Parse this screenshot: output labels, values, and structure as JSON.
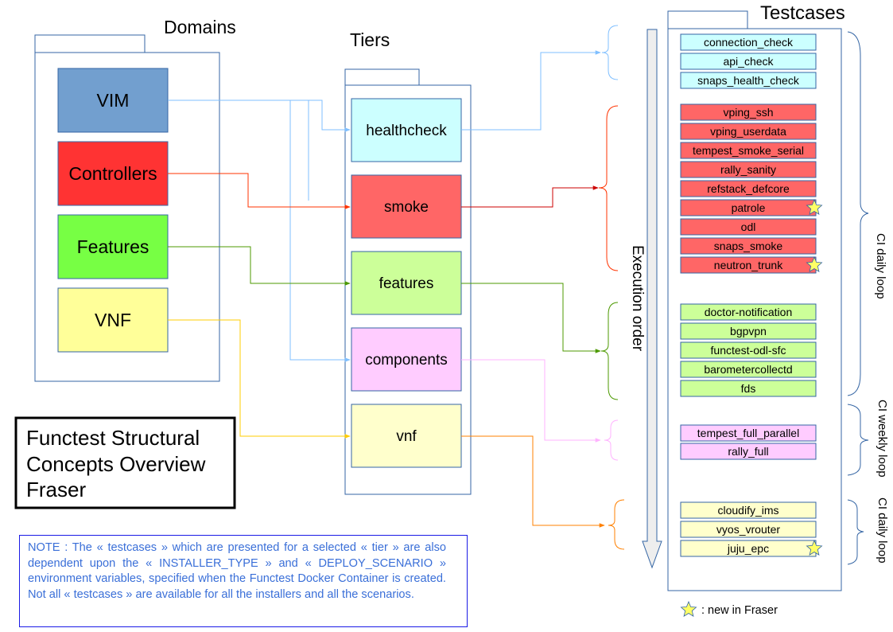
{
  "domains": {
    "title": "Domains",
    "items": [
      {
        "label": "VIM",
        "color": "#729fcf"
      },
      {
        "label": "Controllers",
        "color": "#ff3333"
      },
      {
        "label": "Features",
        "color": "#77ff44"
      },
      {
        "label": "VNF",
        "color": "#ffff99"
      }
    ]
  },
  "tiers": {
    "title": "Tiers",
    "items": [
      {
        "label": "healthcheck",
        "color": "#ccffff"
      },
      {
        "label": "smoke",
        "color": "#ff6666"
      },
      {
        "label": "features",
        "color": "#ccff99"
      },
      {
        "label": "components",
        "color": "#ffccff"
      },
      {
        "label": "vnf",
        "color": "#ffffcc"
      }
    ]
  },
  "testcases": {
    "title": "Testcases",
    "healthcheck": [
      "connection_check",
      "api_check",
      "snaps_health_check"
    ],
    "smoke": [
      "vping_ssh",
      "vping_userdata",
      "tempest_smoke_serial",
      "rally_sanity",
      "refstack_defcore",
      "patrole",
      "odl",
      "snaps_smoke",
      "neutron_trunk"
    ],
    "features": [
      "doctor-notification",
      "bgpvpn",
      "functest-odl-sfc",
      "barometercollectd",
      "fds"
    ],
    "components": [
      "tempest_full_parallel",
      "rally_full"
    ],
    "vnf": [
      "cloudify_ims",
      "vyos_vrouter",
      "juju_epc"
    ],
    "new_in_fraser": [
      "patrole",
      "neutron_trunk",
      "juju_epc"
    ]
  },
  "execution_order_label": "Execution order",
  "loops": [
    "CI daily loop",
    "CI weekly loop",
    "CI daily loop"
  ],
  "title_box": [
    "Functest Structural",
    "Concepts Overview",
    "Fraser"
  ],
  "legend": {
    "icon": "star-icon",
    "text": ": new  in Fraser"
  },
  "note": "NOTE : The « testcases » which are presented for a selected « tier » are also dependent upon the « INSTALLER_TYPE » and « DEPLOY_SCENARIO » environment variables, specified when the Functest Docker Container is created. Not all « testcases » are available for all the installers and all the scenarios.",
  "colors": {
    "healthcheck": "#66b2ff",
    "smoke": "#cc0000",
    "controllers": "#ff3300",
    "features": "#4c9900",
    "components": "#ff99ff",
    "vnf": "#ffcc00",
    "vnf_out": "#ff8000",
    "border": "#3465a4",
    "star": "#ffff66"
  }
}
